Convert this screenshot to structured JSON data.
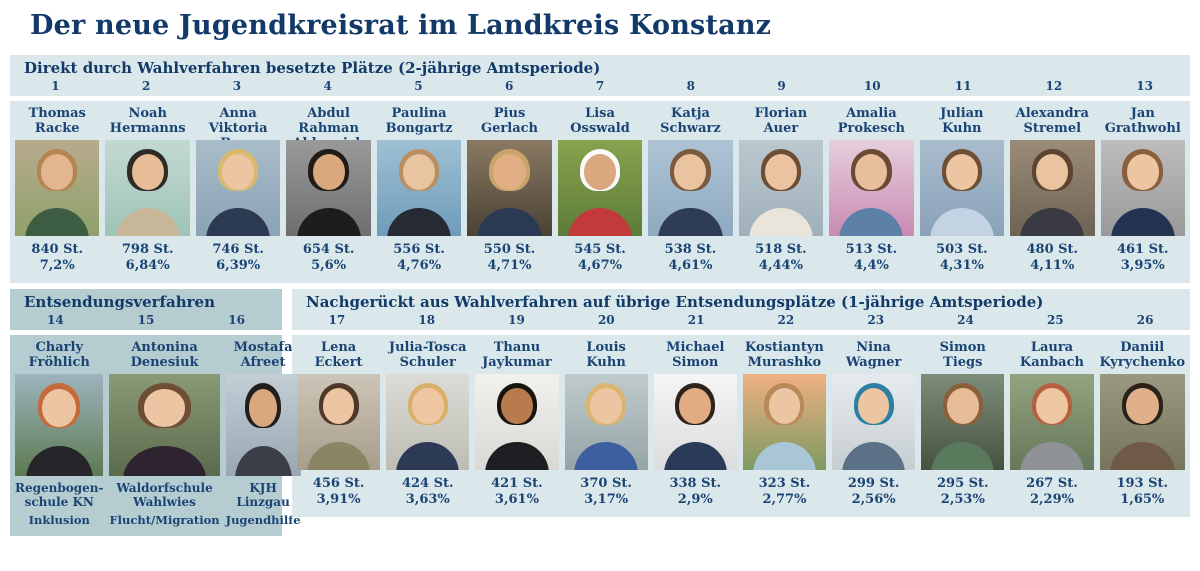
{
  "page": {
    "title": "Der neue Jugendkreisrat im Landkreis Konstanz"
  },
  "colors": {
    "text_navy": "#16406e",
    "band_light": "#dae7eb",
    "band_teal": "#b5ccd1",
    "page_bg": "#ffffff"
  },
  "sections": {
    "direct": {
      "title": "Direkt durch Wahlverfahren besetzte Plätze (2-jährige Amtsperiode)",
      "members": [
        {
          "seat": "1",
          "first": "Thomas",
          "last": "Racke",
          "votes": "840 St.",
          "percent": "7,2%",
          "photo": {
            "bg1": "#b8ab8e",
            "bg2": "#8fa06b",
            "hair": "#b5854f",
            "skin": "#e3b68f",
            "shirt": "#3c5d42"
          }
        },
        {
          "seat": "2",
          "first": "Noah",
          "last": "Hermanns",
          "votes": "798 St.",
          "percent": "6,84%",
          "photo": {
            "bg1": "#c2d9d2",
            "bg2": "#9fc3b8",
            "hair": "#2e2a26",
            "skin": "#e6bd96",
            "shirt": "#c7b697"
          }
        },
        {
          "seat": "3",
          "first": "Anna Viktoria",
          "last": "Baur",
          "votes": "746 St.",
          "percent": "6,39%",
          "photo": {
            "bg1": "#a9bcc9",
            "bg2": "#8ba3b5",
            "hair": "#d9b96e",
            "skin": "#ecc6a3",
            "shirt": "#2c3a52"
          }
        },
        {
          "seat": "4",
          "first": "Abdul Rahman",
          "last": "Aldarwish",
          "votes": "654 St.",
          "percent": "5,6%",
          "photo": {
            "bg1": "#9a9a9a",
            "bg2": "#6e6e6e",
            "hair": "#1f1b18",
            "skin": "#d9a87e",
            "shirt": "#1d1d1f"
          }
        },
        {
          "seat": "5",
          "first": "Paulina",
          "last": "Bongartz",
          "votes": "556 St.",
          "percent": "4,76%",
          "photo": {
            "bg1": "#9fc0d4",
            "bg2": "#6e9cba",
            "hair": "#b98f62",
            "skin": "#e9c4a0",
            "shirt": "#252a33"
          }
        },
        {
          "seat": "6",
          "first": "Pius",
          "last": "Gerlach",
          "votes": "550 St.",
          "percent": "4,71%",
          "photo": {
            "bg1": "#8a7a62",
            "bg2": "#4a4236",
            "hair": "#caa36a",
            "skin": "#e0ad85",
            "shirt": "#2a3a54"
          }
        },
        {
          "seat": "7",
          "first": "Lisa",
          "last": "Osswald",
          "votes": "545 St.",
          "percent": "4,67%",
          "photo": {
            "bg1": "#87a34f",
            "bg2": "#5e7c38",
            "hair": "#fafafa",
            "skin": "#d9a87e",
            "shirt": "#c23b3b"
          }
        },
        {
          "seat": "8",
          "first": "Katja",
          "last": "Schwarz",
          "votes": "538 St.",
          "percent": "4,61%",
          "photo": {
            "bg1": "#aec4d6",
            "bg2": "#8ea9c0",
            "hair": "#7b5a3e",
            "skin": "#eac3a0",
            "shirt": "#2e3c54"
          }
        },
        {
          "seat": "9",
          "first": "Florian",
          "last": "Auer",
          "votes": "518 St.",
          "percent": "4,44%",
          "photo": {
            "bg1": "#bcc8d0",
            "bg2": "#9fb0ba",
            "hair": "#6b4e34",
            "skin": "#ecc3a0",
            "shirt": "#e9e5da"
          }
        },
        {
          "seat": "10",
          "first": "Amalia",
          "last": "Prokesch",
          "votes": "513 St.",
          "percent": "4,4%",
          "photo": {
            "bg1": "#e6cfdc",
            "bg2": "#c98ab2",
            "hair": "#6b4a33",
            "skin": "#e8bf9c",
            "shirt": "#5d80a8"
          }
        },
        {
          "seat": "11",
          "first": "Julian",
          "last": "Kuhn",
          "votes": "503 St.",
          "percent": "4,31%",
          "photo": {
            "bg1": "#a9bccd",
            "bg2": "#8aa2b8",
            "hair": "#6e4f36",
            "skin": "#ecc5a2",
            "shirt": "#c3d3e3"
          }
        },
        {
          "seat": "12",
          "first": "Alexandra",
          "last": "Stremel",
          "votes": "480 St.",
          "percent": "4,11%",
          "photo": {
            "bg1": "#9b8c79",
            "bg2": "#6e6253",
            "hair": "#5e4430",
            "skin": "#eac3a0",
            "shirt": "#3a3a42"
          }
        },
        {
          "seat": "13",
          "first": "Jan",
          "last": "Grathwohl",
          "votes": "461 St.",
          "percent": "3,95%",
          "photo": {
            "bg1": "#bdbdbd",
            "bg2": "#999999",
            "hair": "#8a5f3c",
            "skin": "#ecc5a2",
            "shirt": "#233350"
          }
        }
      ]
    },
    "delegation": {
      "title": "Entsendungsverfahren",
      "members": [
        {
          "seat": "14",
          "first": "Charly",
          "last": "Fröhlich",
          "org1": "Regenbogen-",
          "org2": "schule KN",
          "category": "Inklusion",
          "photo": {
            "bg1": "#9db4bd",
            "bg2": "#5d7a52",
            "hair": "#c56a3a",
            "skin": "#ecc5a2",
            "shirt": "#26262a"
          }
        },
        {
          "seat": "15",
          "first": "Antonina",
          "last": "Denesiuk",
          "org1": "Waldorfschule",
          "org2": "Wahlwies",
          "category": "Flucht/Migration",
          "photo": {
            "bg1": "#8a9a77",
            "bg2": "#5c6b4c",
            "hair": "#6e4f36",
            "skin": "#ecc5a2",
            "shirt": "#2e2430"
          }
        },
        {
          "seat": "16",
          "first": "Mostafa",
          "last": "Afreet",
          "org1": "KJH Linzgau",
          "org2": "",
          "category": "Jugendhilfe",
          "photo": {
            "bg1": "#c3ced6",
            "bg2": "#98a7b2",
            "hair": "#221e1b",
            "skin": "#d9a87e",
            "shirt": "#3a3e46"
          }
        }
      ]
    },
    "nachgerueckt": {
      "title": "Nachgerückt aus Wahlverfahren auf übrige Entsendungsplätze (1-jährige Amtsperiode)",
      "members": [
        {
          "seat": "17",
          "first": "Lena",
          "last": "Eckert",
          "votes": "456 St.",
          "percent": "3,91%",
          "photo": {
            "bg1": "#cdc5b7",
            "bg2": "#a79d8d",
            "hair": "#4e382a",
            "skin": "#ecc5a2",
            "shirt": "#8a8565"
          }
        },
        {
          "seat": "18",
          "first": "Julia-Tosca",
          "last": "Schuler",
          "votes": "424 St.",
          "percent": "3,63%",
          "photo": {
            "bg1": "#dcdcd6",
            "bg2": "#bdbdb5",
            "hair": "#d9b06a",
            "skin": "#eec6a2",
            "shirt": "#2c3a56"
          }
        },
        {
          "seat": "19",
          "first": "Thanu",
          "last": "Jaykumar",
          "votes": "421 St.",
          "percent": "3,61%",
          "photo": {
            "bg1": "#f2f1ee",
            "bg2": "#d9d8d4",
            "hair": "#17130f",
            "skin": "#b77b4e",
            "shirt": "#1d1d22"
          }
        },
        {
          "seat": "20",
          "first": "Louis",
          "last": "Kuhn",
          "votes": "370 St.",
          "percent": "3,17%",
          "photo": {
            "bg1": "#c0cacc",
            "bg2": "#96a5a8",
            "hair": "#d9b570",
            "skin": "#ecc5a2",
            "shirt": "#3d5fa0"
          }
        },
        {
          "seat": "21",
          "first": "Michael",
          "last": "Simon",
          "votes": "338 St.",
          "percent": "2,9%",
          "photo": {
            "bg1": "#f5f5f5",
            "bg2": "#dcdcdc",
            "hair": "#2e241c",
            "skin": "#e2ab84",
            "shirt": "#2b3a58"
          }
        },
        {
          "seat": "22",
          "first": "Kostiantyn",
          "last": "Murashko",
          "votes": "323 St.",
          "percent": "2,77%",
          "photo": {
            "bg1": "#efb083",
            "bg2": "#7d9a62",
            "hair": "#b98a58",
            "skin": "#ecc5a2",
            "shirt": "#a9c6d6"
          }
        },
        {
          "seat": "23",
          "first": "Nina",
          "last": "Wagner",
          "votes": "299 St.",
          "percent": "2,56%",
          "photo": {
            "bg1": "#e7ebed",
            "bg2": "#c6ced2",
            "hair": "#2e7fa6",
            "skin": "#ecc5a2",
            "shirt": "#5b7286"
          }
        },
        {
          "seat": "24",
          "first": "Simon",
          "last": "Tiegs",
          "votes": "295 St.",
          "percent": "2,53%",
          "photo": {
            "bg1": "#7d8d7a",
            "bg2": "#46523f",
            "hair": "#8a5f3c",
            "skin": "#e6bd96",
            "shirt": "#5a7a5e"
          }
        },
        {
          "seat": "25",
          "first": "Laura",
          "last": "Kanbach",
          "votes": "267 St.",
          "percent": "2,29%",
          "photo": {
            "bg1": "#93a47f",
            "bg2": "#66775a",
            "hair": "#b5603f",
            "skin": "#eec6a2",
            "shirt": "#8e9296"
          }
        },
        {
          "seat": "26",
          "first": "Daniil",
          "last": "Kyrychenko",
          "votes": "193 St.",
          "percent": "1,65%",
          "photo": {
            "bg1": "#9a997f",
            "bg2": "#76755c",
            "hair": "#2a211a",
            "skin": "#dfb08a",
            "shirt": "#6e5a46"
          }
        }
      ]
    }
  }
}
